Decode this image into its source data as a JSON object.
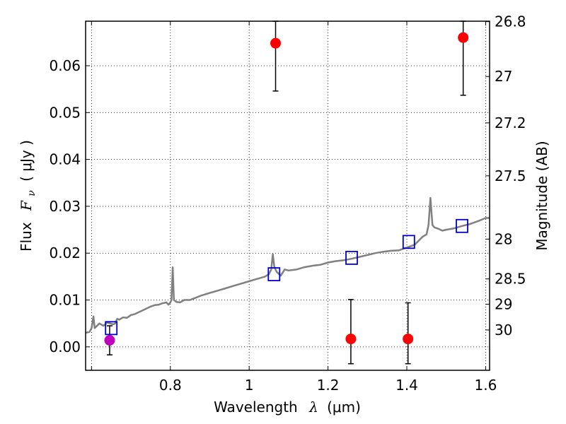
{
  "chart_data": {
    "type": "scatter",
    "xlabel": "Wavelength",
    "xlabel_math": "λ",
    "xlabel_unit": "(μm)",
    "ylabel": "Flux",
    "ylabel_math_main": "F",
    "ylabel_math_sub": "ν",
    "ylabel_unit": "( μJy )",
    "y2label": "Magnitude (AB)",
    "xlim": [
      0.585,
      1.61
    ],
    "ylim": [
      -0.005,
      0.0695
    ],
    "grid": true,
    "x_ticks": [
      {
        "value": 0.6,
        "label": ""
      },
      {
        "value": 0.8,
        "label": "0.8"
      },
      {
        "value": 1.0,
        "label": "1"
      },
      {
        "value": 1.2,
        "label": "1.2"
      },
      {
        "value": 1.4,
        "label": "1.4"
      },
      {
        "value": 1.6,
        "label": "1.6"
      }
    ],
    "y_ticks": [
      {
        "value": 0.0,
        "label": "0.00"
      },
      {
        "value": 0.01,
        "label": "0.01"
      },
      {
        "value": 0.02,
        "label": "0.02"
      },
      {
        "value": 0.03,
        "label": "0.03"
      },
      {
        "value": 0.04,
        "label": "0.04"
      },
      {
        "value": 0.05,
        "label": "0.05"
      },
      {
        "value": 0.06,
        "label": "0.06"
      }
    ],
    "y2_ticks": [
      {
        "flux": 0.0694,
        "label": "26.8"
      },
      {
        "flux": 0.0577,
        "label": "27"
      },
      {
        "flux": 0.0478,
        "label": "27.2"
      },
      {
        "flux": 0.0365,
        "label": "27.5"
      },
      {
        "flux": 0.023,
        "label": "28"
      },
      {
        "flux": 0.0145,
        "label": "28.5"
      },
      {
        "flux": 0.0091,
        "label": "29"
      },
      {
        "flux": 0.0036,
        "label": "30"
      }
    ],
    "series": [
      {
        "kind": "measured-red",
        "color": "#ff0000",
        "points": [
          {
            "x": 1.067,
            "y": 0.0648,
            "yerr_low": 0.0546,
            "yerr_high": 0.0695
          },
          {
            "x": 1.543,
            "y": 0.066,
            "yerr_low": 0.0537,
            "yerr_high": 0.0695
          },
          {
            "x": 1.258,
            "y": 0.0017,
            "yerr_low": -0.0036,
            "yerr_high": 0.0101
          },
          {
            "x": 1.403,
            "y": 0.0017,
            "yerr_low": -0.0036,
            "yerr_high": 0.0094
          }
        ]
      },
      {
        "kind": "measured-magenta",
        "color": "#bf00bf",
        "points": [
          {
            "x": 0.646,
            "y": 0.0014,
            "yerr_low": -0.0017,
            "yerr_high": 0.0045
          }
        ]
      },
      {
        "kind": "model-bandflux",
        "color": "#0000cc",
        "points": [
          {
            "x": 0.65,
            "y": 0.004
          },
          {
            "x": 1.063,
            "y": 0.0155
          },
          {
            "x": 1.26,
            "y": 0.019
          },
          {
            "x": 1.405,
            "y": 0.0224
          },
          {
            "x": 1.54,
            "y": 0.0258
          }
        ]
      },
      {
        "kind": "model-spectrum",
        "color": "#808080",
        "points": [
          [
            0.585,
            0.003
          ],
          [
            0.595,
            0.0032
          ],
          [
            0.6,
            0.004
          ],
          [
            0.605,
            0.0065
          ],
          [
            0.608,
            0.004
          ],
          [
            0.62,
            0.005
          ],
          [
            0.63,
            0.0045
          ],
          [
            0.64,
            0.0052
          ],
          [
            0.655,
            0.0048
          ],
          [
            0.66,
            0.005
          ],
          [
            0.665,
            0.006
          ],
          [
            0.67,
            0.0058
          ],
          [
            0.68,
            0.0063
          ],
          [
            0.69,
            0.0062
          ],
          [
            0.7,
            0.0068
          ],
          [
            0.71,
            0.007
          ],
          [
            0.72,
            0.0074
          ],
          [
            0.73,
            0.0078
          ],
          [
            0.74,
            0.0082
          ],
          [
            0.75,
            0.0086
          ],
          [
            0.76,
            0.0089
          ],
          [
            0.77,
            0.009
          ],
          [
            0.78,
            0.0093
          ],
          [
            0.79,
            0.0095
          ],
          [
            0.795,
            0.009
          ],
          [
            0.8,
            0.0095
          ],
          [
            0.803,
            0.01
          ],
          [
            0.806,
            0.017
          ],
          [
            0.809,
            0.01
          ],
          [
            0.815,
            0.0096
          ],
          [
            0.825,
            0.0095
          ],
          [
            0.835,
            0.01
          ],
          [
            0.85,
            0.01
          ],
          [
            0.865,
            0.0105
          ],
          [
            0.88,
            0.011
          ],
          [
            0.9,
            0.0115
          ],
          [
            0.92,
            0.012
          ],
          [
            0.94,
            0.0125
          ],
          [
            0.96,
            0.013
          ],
          [
            0.98,
            0.0135
          ],
          [
            1.0,
            0.014
          ],
          [
            1.02,
            0.0145
          ],
          [
            1.04,
            0.015
          ],
          [
            1.05,
            0.0155
          ],
          [
            1.056,
            0.0165
          ],
          [
            1.06,
            0.0198
          ],
          [
            1.064,
            0.017
          ],
          [
            1.07,
            0.016
          ],
          [
            1.08,
            0.0152
          ],
          [
            1.09,
            0.0165
          ],
          [
            1.1,
            0.0163
          ],
          [
            1.12,
            0.0165
          ],
          [
            1.14,
            0.017
          ],
          [
            1.16,
            0.0173
          ],
          [
            1.18,
            0.0175
          ],
          [
            1.2,
            0.018
          ],
          [
            1.22,
            0.0183
          ],
          [
            1.24,
            0.0185
          ],
          [
            1.26,
            0.0188
          ],
          [
            1.28,
            0.0192
          ],
          [
            1.3,
            0.0196
          ],
          [
            1.32,
            0.02
          ],
          [
            1.34,
            0.0203
          ],
          [
            1.36,
            0.0205
          ],
          [
            1.38,
            0.0206
          ],
          [
            1.4,
            0.0212
          ],
          [
            1.42,
            0.0218
          ],
          [
            1.44,
            0.0235
          ],
          [
            1.45,
            0.024
          ],
          [
            1.455,
            0.026
          ],
          [
            1.46,
            0.0318
          ],
          [
            1.465,
            0.026
          ],
          [
            1.47,
            0.0255
          ],
          [
            1.48,
            0.0252
          ],
          [
            1.49,
            0.0248
          ],
          [
            1.5,
            0.025
          ],
          [
            1.52,
            0.0253
          ],
          [
            1.54,
            0.0258
          ],
          [
            1.56,
            0.0262
          ],
          [
            1.58,
            0.0268
          ],
          [
            1.6,
            0.0275
          ],
          [
            1.61,
            0.0275
          ]
        ]
      }
    ]
  }
}
